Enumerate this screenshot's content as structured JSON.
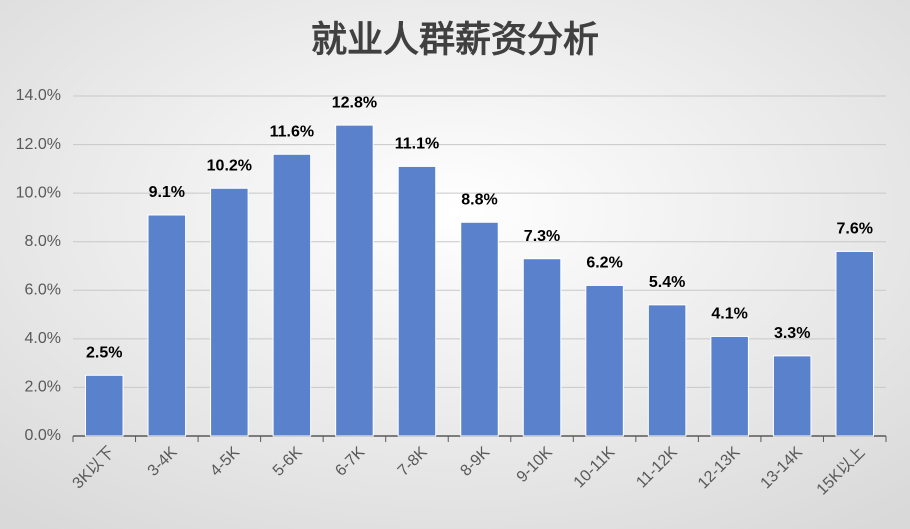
{
  "chart_data": {
    "type": "bar",
    "title": "就业人群薪资分析",
    "categories": [
      "3K以下",
      "3-4K",
      "4-5K",
      "5-6K",
      "6-7K",
      "7-8K",
      "8-9K",
      "9-10K",
      "10-11K",
      "11-12K",
      "12-13K",
      "13-14K",
      "15K以上"
    ],
    "values": [
      2.5,
      9.1,
      10.2,
      11.6,
      12.8,
      11.1,
      8.8,
      7.3,
      6.2,
      5.4,
      4.1,
      3.3,
      7.6
    ],
    "value_labels": [
      "2.5%",
      "9.1%",
      "10.2%",
      "11.6%",
      "12.8%",
      "11.1%",
      "8.8%",
      "7.3%",
      "6.2%",
      "5.4%",
      "4.1%",
      "3.3%",
      "7.6%"
    ],
    "color": "#5a82cc",
    "ylim": [
      0,
      14
    ],
    "yticks": [
      {
        "value": 0,
        "label": "0.0%"
      },
      {
        "value": 2,
        "label": "2.0%"
      },
      {
        "value": 4,
        "label": "4.0%"
      },
      {
        "value": 6,
        "label": "6.0%"
      },
      {
        "value": 8,
        "label": "8.0%"
      },
      {
        "value": 10,
        "label": "10.0%"
      },
      {
        "value": 12,
        "label": "12.0%"
      },
      {
        "value": 14,
        "label": "14.0%"
      }
    ],
    "grid": true
  }
}
